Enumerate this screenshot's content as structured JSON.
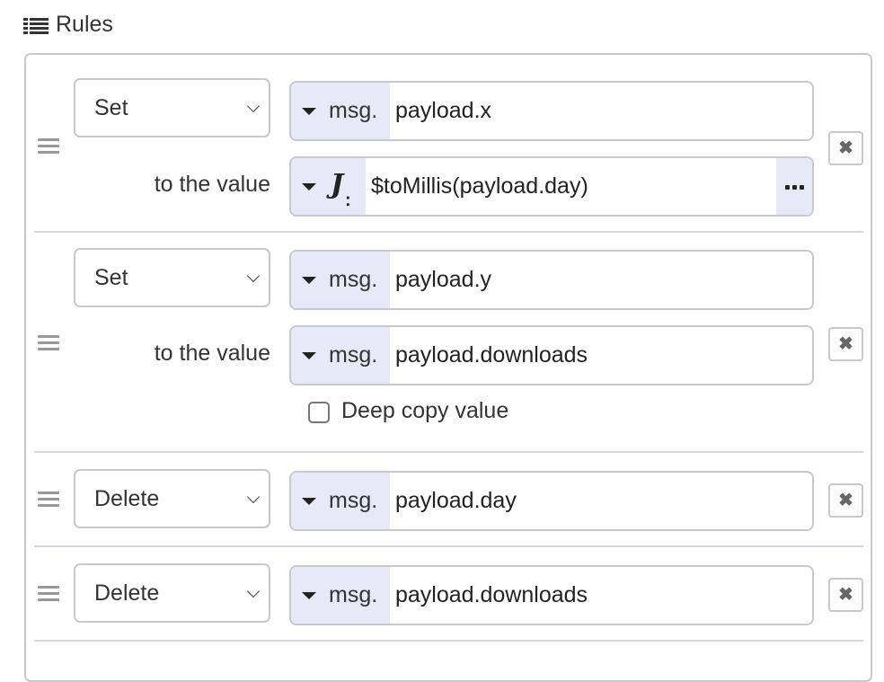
{
  "header": {
    "title": "Rules",
    "icon": "list-icon"
  },
  "labels": {
    "to_the_value": "to the value",
    "deep_copy": "Deep copy value"
  },
  "colors": {
    "type_bg": "#e8e9f7",
    "border": "#c8c8d0",
    "text": "#333333"
  },
  "rules": [
    {
      "action": "Set",
      "target_type": "msg.",
      "target": "payload.x",
      "value_type": "J:",
      "value_type_icon": "jsonata-icon",
      "value": "$toMillis(payload.day)",
      "expand_icon": "ellipsis-icon"
    },
    {
      "action": "Set",
      "target_type": "msg.",
      "target": "payload.y",
      "value_type": "msg.",
      "value": "payload.downloads",
      "deep_copy_checked": false
    },
    {
      "action": "Delete",
      "target_type": "msg.",
      "target": "payload.day"
    },
    {
      "action": "Delete",
      "target_type": "msg.",
      "target": "payload.downloads"
    }
  ],
  "delete_icon": "close-icon",
  "delete_glyph": "✖"
}
